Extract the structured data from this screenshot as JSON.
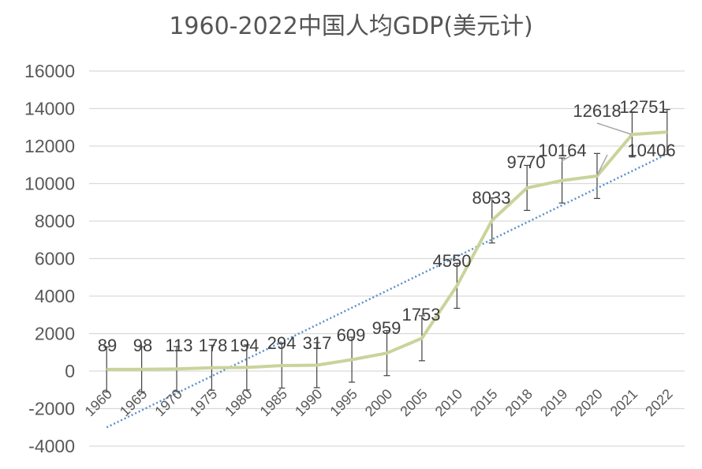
{
  "chart_data": {
    "type": "line",
    "title": "1960-2022中国人均GDP(美元计)",
    "xlabel": "",
    "ylabel": "",
    "categories": [
      "1960",
      "1965",
      "1970",
      "1975",
      "1980",
      "1985",
      "1990",
      "1995",
      "2000",
      "2005",
      "2010",
      "2015",
      "2018",
      "2019",
      "2020",
      "2021",
      "2022"
    ],
    "series": [
      {
        "values": [
          89,
          98,
          113,
          178,
          194,
          294,
          317,
          609,
          959,
          1753,
          4550,
          8033,
          9770,
          10164,
          10406,
          12618,
          12751
        ],
        "labels": [
          "89",
          "98",
          "113",
          "178",
          "194",
          "294",
          "317",
          "609",
          "959",
          "1753",
          "4550",
          "8033",
          "9770",
          "10164",
          "10406",
          "12618",
          "12751"
        ],
        "error": 1200,
        "color": "#c8d49a"
      }
    ],
    "trendline": {
      "type": "linear",
      "color": "#5b8fc9",
      "style": "dotted"
    },
    "ylim": [
      -4000,
      16000
    ],
    "yticks": [
      -4000,
      -2000,
      0,
      2000,
      4000,
      6000,
      8000,
      10000,
      12000,
      14000,
      16000
    ],
    "grid": true,
    "legend": "none"
  }
}
